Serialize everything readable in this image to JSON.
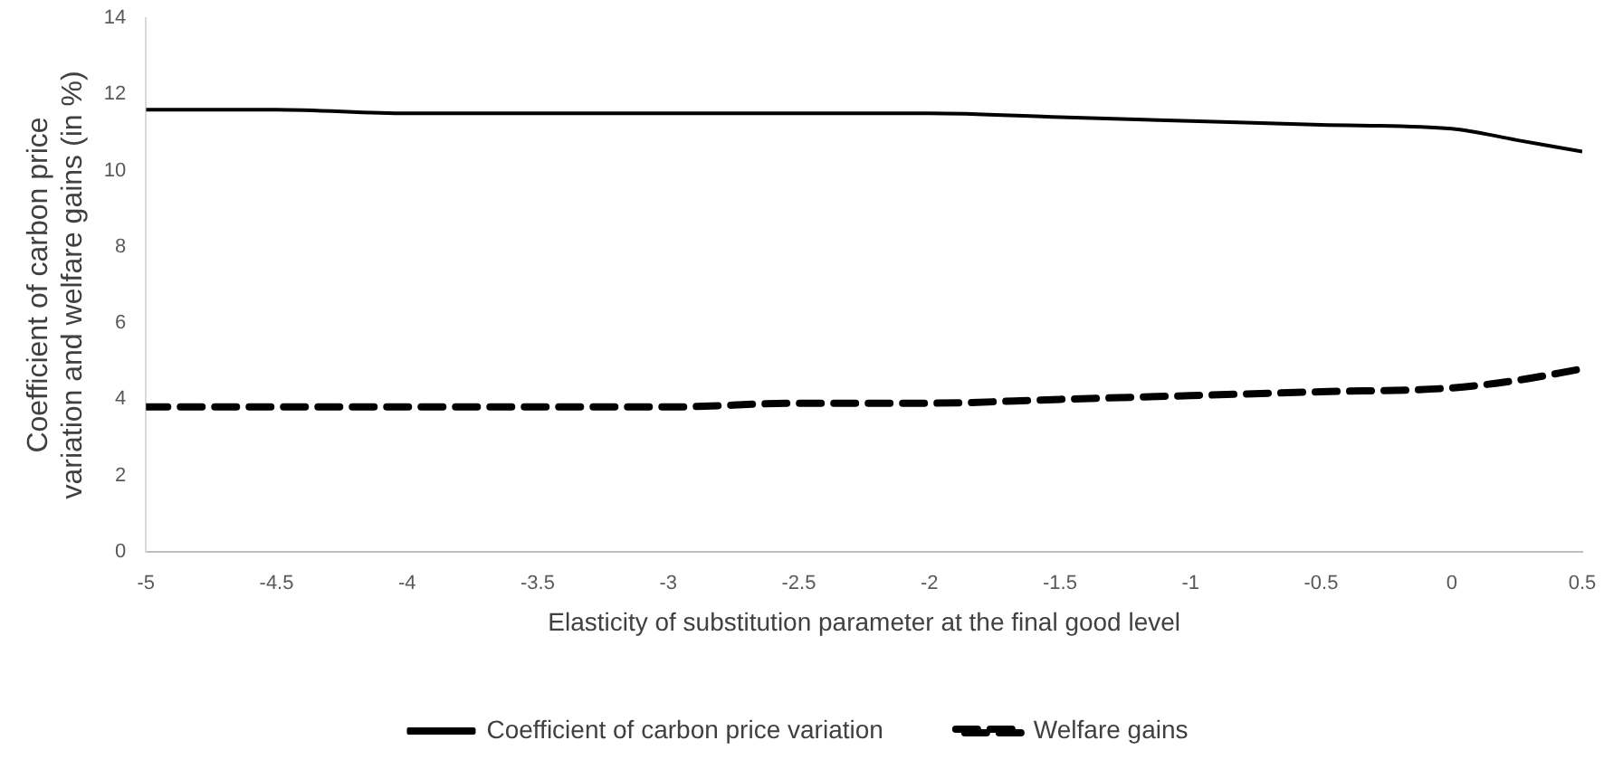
{
  "chart_data": {
    "type": "line",
    "xlabel": "Elasticity of substitution parameter at the final good level",
    "ylabel": "Coefficient of carbon price variation and welfare gains (in %)",
    "x": [
      -5,
      -4.5,
      -4,
      -3.5,
      -3,
      -2.5,
      -2,
      -1.5,
      -1,
      -0.5,
      0,
      0.25,
      0.5
    ],
    "series": [
      {
        "name": "Coefficient of carbon price variation",
        "color": "#000000",
        "line_style": "solid",
        "values": [
          11.6,
          11.6,
          11.5,
          11.5,
          11.5,
          11.5,
          11.5,
          11.4,
          11.3,
          11.2,
          11.1,
          10.8,
          10.5
        ]
      },
      {
        "name": "Welfare gains",
        "color": "#000000",
        "line_style": "dashed",
        "values": [
          3.8,
          3.8,
          3.8,
          3.8,
          3.8,
          3.9,
          3.9,
          4.0,
          4.1,
          4.2,
          4.3,
          4.5,
          4.8
        ]
      }
    ],
    "xlim": [
      -5,
      0.5
    ],
    "xticks": [
      -5,
      -4.5,
      -4,
      -3.5,
      -3,
      -2.5,
      -2,
      -1.5,
      -1,
      -0.5,
      0,
      0.5
    ],
    "ylim": [
      0,
      14
    ],
    "yticks": [
      0,
      2,
      4,
      6,
      8,
      10,
      12,
      14
    ],
    "grid": false,
    "legend": "bottom",
    "marker": "none"
  }
}
